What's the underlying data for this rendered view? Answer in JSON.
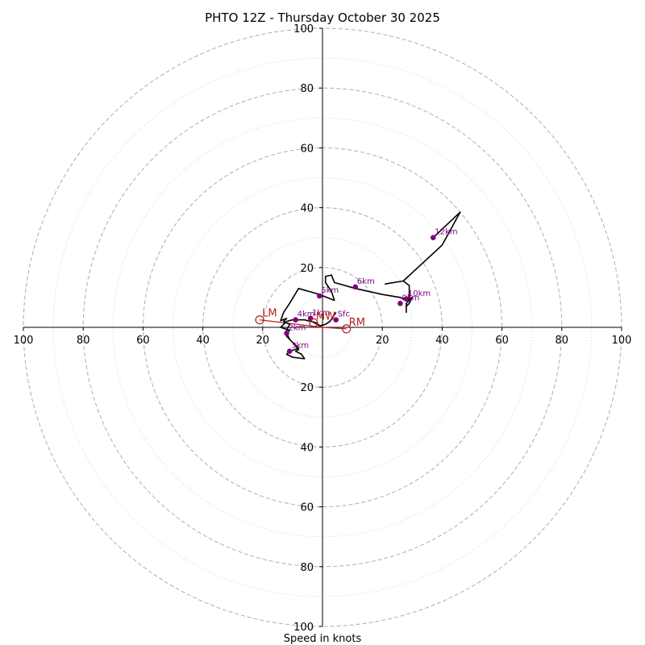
{
  "chart_data": {
    "type": "hodograph",
    "title": "PHTO 12Z - Thursday October 30 2025",
    "xlabel": "Speed in knots",
    "axis_range": [
      -100,
      100
    ],
    "rings_major": [
      20,
      40,
      60,
      80,
      100
    ],
    "rings_minor": [
      10,
      30,
      50,
      70,
      90
    ],
    "tick_values": [
      20,
      40,
      60,
      80,
      100
    ],
    "tick_labels": [
      "20",
      "40",
      "60",
      "80",
      "100"
    ],
    "colors": {
      "trace": "#000000",
      "points": "#800080",
      "motion": "#b22222",
      "grid_major": "#b4b4b4",
      "grid_minor": "#cccccc"
    },
    "trace": [
      [
        4.5,
        5
      ],
      [
        2.5,
        2
      ],
      [
        1,
        1
      ],
      [
        -1,
        0.5
      ],
      [
        -2,
        1.5
      ],
      [
        -4,
        2
      ],
      [
        -6,
        2.5
      ],
      [
        -8,
        2.5
      ],
      [
        -10,
        2.5
      ],
      [
        -12,
        2
      ],
      [
        -14,
        0
      ],
      [
        -11,
        -1
      ],
      [
        -12,
        -2
      ],
      [
        -11,
        -4
      ],
      [
        -9,
        -6
      ],
      [
        -8,
        -7
      ],
      [
        -11,
        -8
      ],
      [
        -12,
        -9
      ],
      [
        -10,
        -10
      ],
      [
        -6,
        -10.5
      ],
      [
        -7,
        -9
      ],
      [
        -9,
        -8
      ],
      [
        -8,
        -7.5
      ],
      [
        -10,
        -5
      ],
      [
        -12,
        -3
      ],
      [
        -12,
        -1
      ],
      [
        -11,
        1
      ],
      [
        -13,
        2
      ],
      [
        -12,
        3
      ],
      [
        -14,
        2.2
      ],
      [
        -13,
        5
      ],
      [
        -11,
        8
      ],
      [
        -8,
        13
      ],
      [
        -1,
        11
      ],
      [
        4,
        9
      ],
      [
        3,
        12
      ],
      [
        1,
        15
      ],
      [
        1,
        17
      ],
      [
        3,
        17.5
      ],
      [
        4,
        15
      ],
      [
        11,
        13
      ],
      [
        20,
        11
      ],
      [
        26,
        10
      ],
      [
        28,
        9
      ],
      [
        29,
        9.5
      ],
      [
        30,
        10
      ],
      [
        29,
        8
      ],
      [
        28,
        7
      ],
      [
        28,
        5
      ],
      [
        28,
        8
      ],
      [
        29,
        9
      ],
      [
        29,
        14
      ],
      [
        27,
        15.5
      ],
      [
        21,
        14.5
      ],
      [
        27,
        15.5
      ],
      [
        40,
        27.5
      ],
      [
        46,
        38.5
      ],
      [
        37,
        30
      ]
    ],
    "points": [
      {
        "label": "Sfc",
        "u": 4.5,
        "v": 2.5
      },
      {
        "label": "1km",
        "u": -4,
        "v": 3
      },
      {
        "label": "2km",
        "u": -12,
        "v": -2
      },
      {
        "label": "3km",
        "u": -11,
        "v": -8
      },
      {
        "label": "4km",
        "u": -9,
        "v": 2.5
      },
      {
        "label": "5km",
        "u": -1,
        "v": 10.5
      },
      {
        "label": "6km",
        "u": 11,
        "v": 13.5
      },
      {
        "label": "9km",
        "u": 26,
        "v": 8
      },
      {
        "label": "10km",
        "u": 28,
        "v": 9.5
      },
      {
        "label": "12km",
        "u": 37,
        "v": 30
      }
    ],
    "motion": [
      {
        "label": "LM",
        "u": -21,
        "v": 2.5
      },
      {
        "label": "RM",
        "u": 8,
        "v": -0.5
      },
      {
        "label": "MW",
        "u": -3,
        "v": 1.5
      }
    ]
  }
}
